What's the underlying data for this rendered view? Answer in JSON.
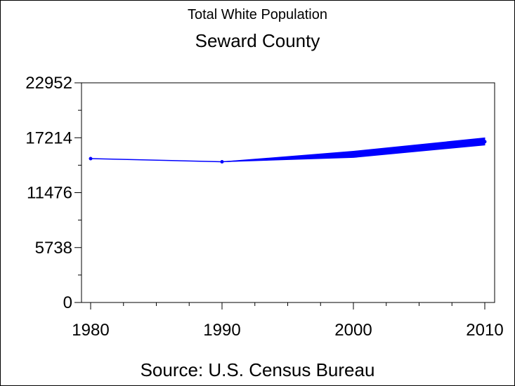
{
  "chart_data": {
    "type": "line",
    "title": "Total White Population",
    "subtitle": "Seward County",
    "source": "Source: U.S. Census Bureau",
    "x": [
      1980,
      1990,
      2000,
      2010
    ],
    "xlim": [
      1980,
      2010
    ],
    "x_ticks": [
      "1980",
      "1990",
      "2000",
      "2010"
    ],
    "ylim": [
      0,
      22952
    ],
    "y_ticks": [
      "0",
      "5738",
      "11476",
      "17214",
      "22952"
    ],
    "series": [
      {
        "values": [
          15032,
          14700,
          15437,
          16800
        ],
        "color": "#0000ff"
      }
    ],
    "band": {
      "x": [
        1990,
        2000,
        2010
      ],
      "lower": [
        14700,
        15150,
        16450
      ],
      "upper": [
        14700,
        15800,
        17200
      ],
      "color": "#0000ff"
    },
    "grid": false,
    "legend": "none"
  }
}
